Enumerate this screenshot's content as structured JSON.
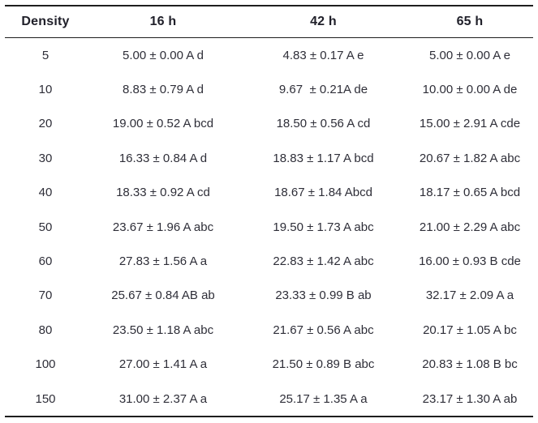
{
  "colors": {
    "rule": "#1e1e1e",
    "header_text": "#20202a",
    "body_text": "#2e2e38",
    "background": "#ffffff"
  },
  "table": {
    "columns": [
      "Density",
      "16 h",
      "42 h",
      "65 h"
    ],
    "rows": [
      [
        "5",
        "5.00 ± 0.00 A d",
        "4.83 ± 0.17 A e",
        "5.00 ± 0.00 A e"
      ],
      [
        "10",
        "8.83 ± 0.79 A d",
        "9.67  ± 0.21A de",
        "10.00 ± 0.00 A de"
      ],
      [
        "20",
        "19.00 ± 0.52 A bcd",
        "18.50 ± 0.56 A cd",
        "15.00 ± 2.91 A cde"
      ],
      [
        "30",
        "16.33 ± 0.84 A d",
        "18.83 ± 1.17 A bcd",
        "20.67 ± 1.82 A abc"
      ],
      [
        "40",
        "18.33 ± 0.92 A cd",
        "18.67 ± 1.84 Abcd",
        "18.17 ± 0.65 A bcd"
      ],
      [
        "50",
        "23.67 ± 1.96 A abc",
        "19.50 ± 1.73 A abc",
        "21.00 ± 2.29 A abc"
      ],
      [
        "60",
        "27.83 ± 1.56 A a",
        "22.83 ± 1.42 A abc",
        "16.00 ± 0.93 B cde"
      ],
      [
        "70",
        "25.67 ± 0.84 AB ab",
        "23.33 ± 0.99 B ab",
        "32.17 ± 2.09 A a"
      ],
      [
        "80",
        "23.50 ± 1.18 A abc",
        "21.67 ± 0.56 A abc",
        "20.17 ± 1.05 A bc"
      ],
      [
        "100",
        "27.00 ± 1.41 A a",
        "21.50 ± 0.89 B abc",
        "20.83 ± 1.08 B bc"
      ],
      [
        "150",
        "31.00 ± 2.37 A a",
        "25.17 ± 1.35 A a",
        "23.17 ± 1.30 A ab"
      ]
    ]
  }
}
